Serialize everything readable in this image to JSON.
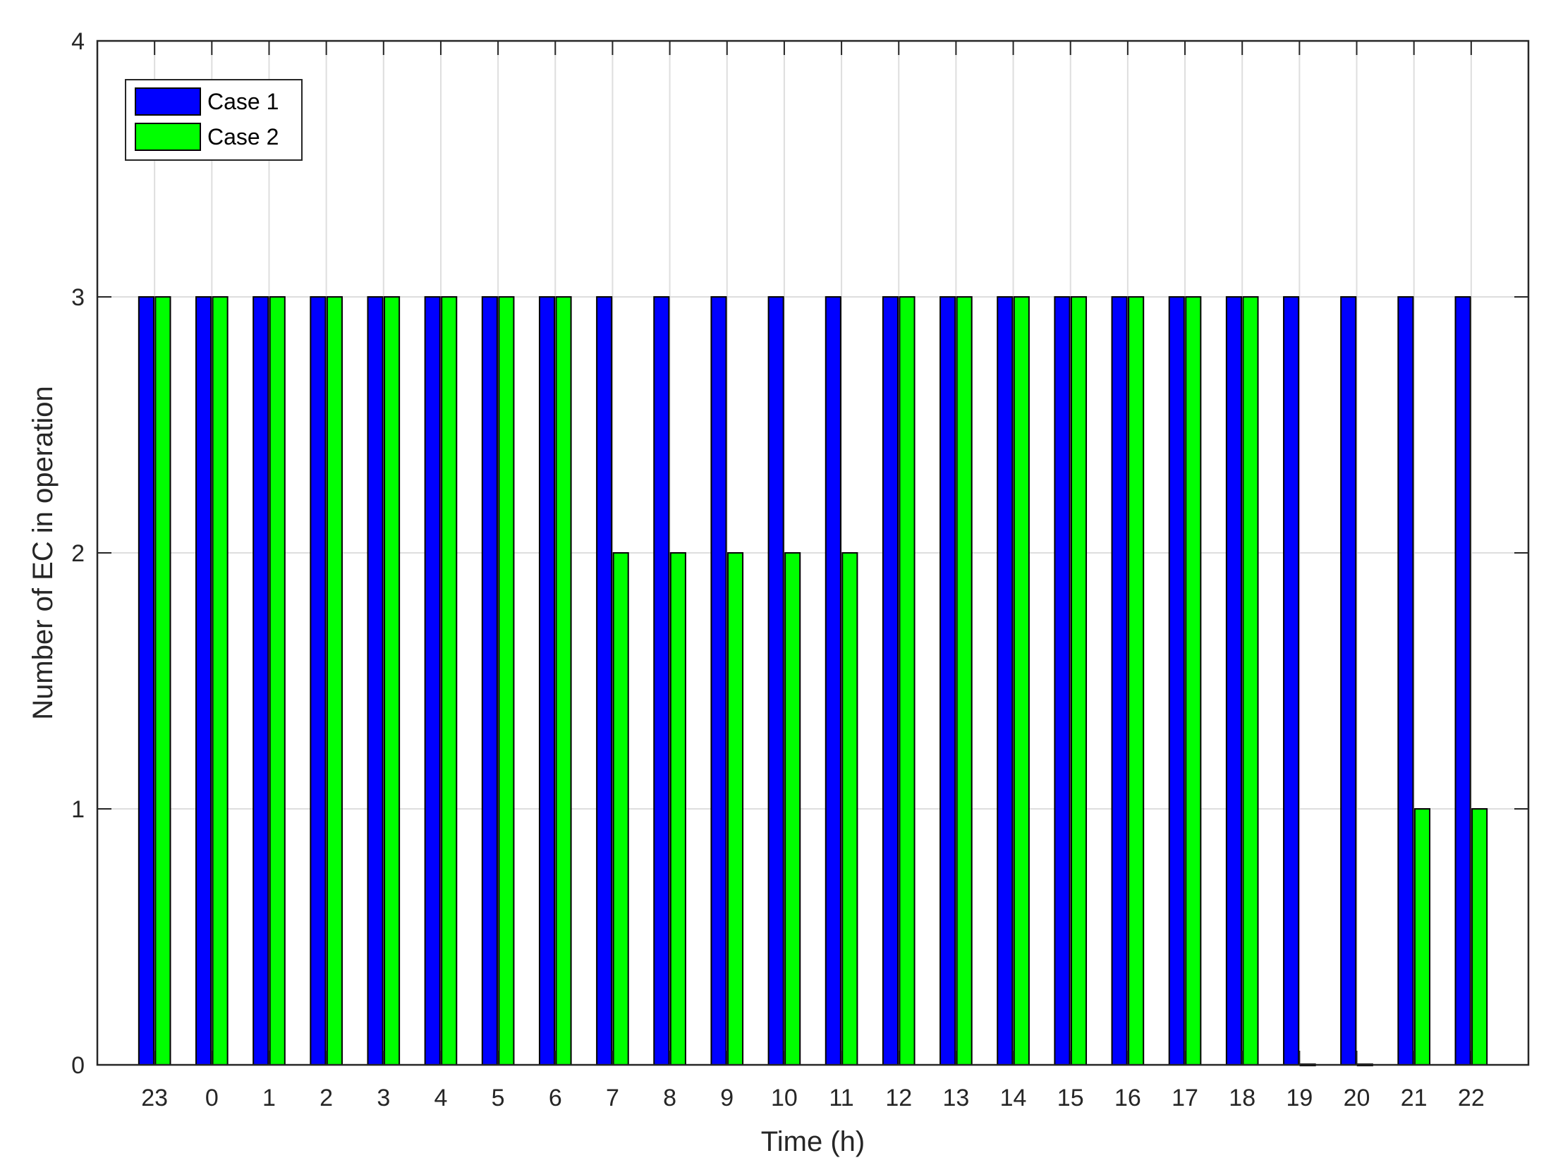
{
  "chart_data": {
    "type": "bar",
    "xlabel": "Time (h)",
    "ylabel": "Number of EC in operation",
    "ylim": [
      0,
      4
    ],
    "yticks": [
      "0",
      "1",
      "2",
      "3",
      "4"
    ],
    "categories": [
      "23",
      "0",
      "1",
      "2",
      "3",
      "4",
      "5",
      "6",
      "7",
      "8",
      "9",
      "10",
      "11",
      "12",
      "13",
      "14",
      "15",
      "16",
      "17",
      "18",
      "19",
      "20",
      "21",
      "22"
    ],
    "series": [
      {
        "name": "Case 1",
        "color": "#0000ff",
        "values": [
          3,
          3,
          3,
          3,
          3,
          3,
          3,
          3,
          3,
          3,
          3,
          3,
          3,
          3,
          3,
          3,
          3,
          3,
          3,
          3,
          3,
          3,
          3,
          3
        ]
      },
      {
        "name": "Case 2",
        "color": "#00ff00",
        "values": [
          3,
          3,
          3,
          3,
          3,
          3,
          3,
          3,
          2,
          2,
          2,
          2,
          2,
          3,
          3,
          3,
          3,
          3,
          3,
          3,
          0,
          0,
          1,
          1
        ]
      }
    ],
    "grid": true,
    "legend_position": "top-left"
  }
}
